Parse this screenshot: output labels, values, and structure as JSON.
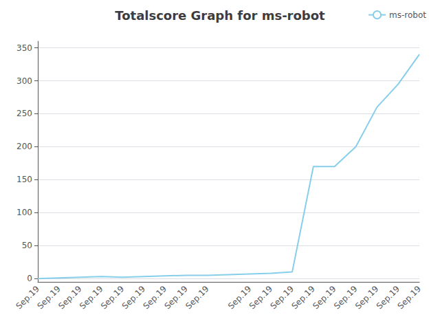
{
  "chart_data": {
    "type": "line",
    "title": "Totalscore Graph for ms-robot",
    "categories": [
      "Sep.19",
      "Sep.19",
      "Sep.19",
      "Sep.19",
      "Sep.19",
      "Sep.19",
      "Sep.19",
      "Sep.19",
      "Sep.19",
      null,
      "Sep.19",
      "Sep.19",
      "Sep.19",
      "Sep.19",
      "Sep.19",
      "Sep.19",
      "Sep.19",
      "Sep.19",
      "Sep.19"
    ],
    "series": [
      {
        "name": "ms-robot",
        "color": "#87CEEB",
        "values": [
          0,
          1,
          2,
          3,
          2,
          3,
          4,
          5,
          5,
          6,
          7,
          8,
          10,
          170,
          170,
          200,
          260,
          295,
          340
        ]
      }
    ],
    "ylim": [
      -5,
      360
    ],
    "yticks": [
      0,
      50,
      100,
      150,
      200,
      250,
      300,
      350
    ],
    "grid": true,
    "legend": "upper right"
  }
}
